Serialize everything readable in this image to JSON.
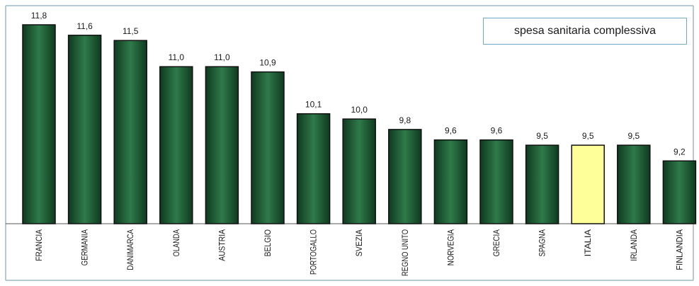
{
  "colors": {
    "bar_dark": "#0f3a1f",
    "bar_light": "#2f7a4a",
    "highlight_bar": "#ffff99",
    "frame": "#9db8c8",
    "legend_border": "#6fa9c9"
  },
  "chart_data": {
    "type": "bar",
    "legend": "spesa sanitaria complessiva",
    "categories": [
      "FRANCIA",
      "GERMANIA",
      "DANIMARCA",
      "OLANDA",
      "AUSTRIA",
      "BELGIO",
      "PORTOGALLO",
      "SVEZIA",
      "REGNO UNITO",
      "NORVEGIA",
      "GRECIA",
      "SPAGNA",
      "ITALIA",
      "IRLANDA",
      "FINLANDIA"
    ],
    "values": [
      11.8,
      11.6,
      11.5,
      11.0,
      11.0,
      10.9,
      10.1,
      10.0,
      9.8,
      9.6,
      9.6,
      9.5,
      9.5,
      9.5,
      9.2
    ],
    "value_labels": [
      "11,8",
      "11,6",
      "11,5",
      "11,0",
      "11,0",
      "10,9",
      "10,1",
      "10,0",
      "9,8",
      "9,6",
      "9,6",
      "9,5",
      "9,5",
      "9,5",
      "9,2"
    ],
    "highlight_category": "ITALIA",
    "ylim": [
      8.0,
      11.8
    ],
    "grid": false,
    "legend_position": "top-right"
  }
}
